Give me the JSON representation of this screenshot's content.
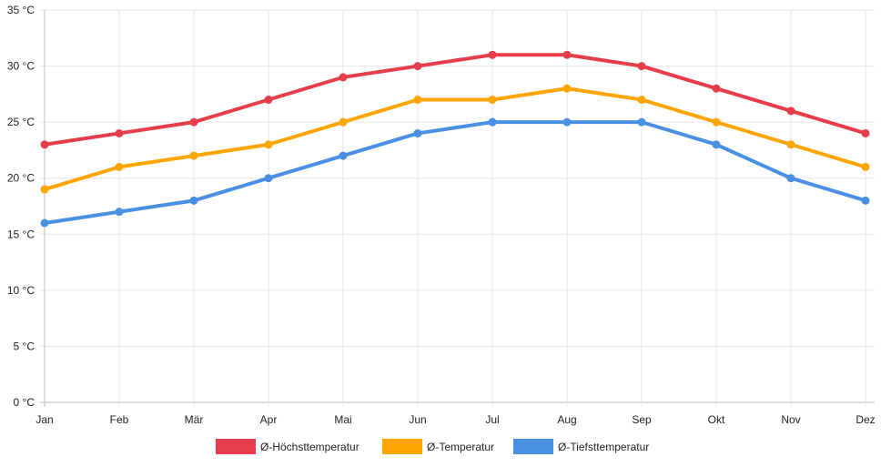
{
  "chart_data": {
    "type": "line",
    "categories": [
      "Jan",
      "Feb",
      "Mär",
      "Apr",
      "Mai",
      "Jun",
      "Jul",
      "Aug",
      "Sep",
      "Okt",
      "Nov",
      "Dez"
    ],
    "y_ticks": [
      "0 °C",
      "5 °C",
      "10 °C",
      "15 °C",
      "20 °C",
      "25 °C",
      "30 °C",
      "35 °C"
    ],
    "ylim": [
      0,
      35
    ],
    "grid": true,
    "legend_position": "bottom",
    "series": [
      {
        "name": "Ø-Höchsttemperatur",
        "color": "#e53e4a",
        "values": [
          23,
          24,
          25,
          27,
          29,
          30,
          31,
          31,
          30,
          28,
          26,
          24
        ]
      },
      {
        "name": "Ø-Temperatur",
        "color": "#ffa500",
        "values": [
          19,
          21,
          22,
          23,
          25,
          27,
          27,
          28,
          27,
          25,
          23,
          21
        ]
      },
      {
        "name": "Ø-Tiefsttemperatur",
        "color": "#4a90e2",
        "values": [
          16,
          17,
          18,
          20,
          22,
          24,
          25,
          25,
          25,
          23,
          20,
          18
        ]
      }
    ]
  }
}
